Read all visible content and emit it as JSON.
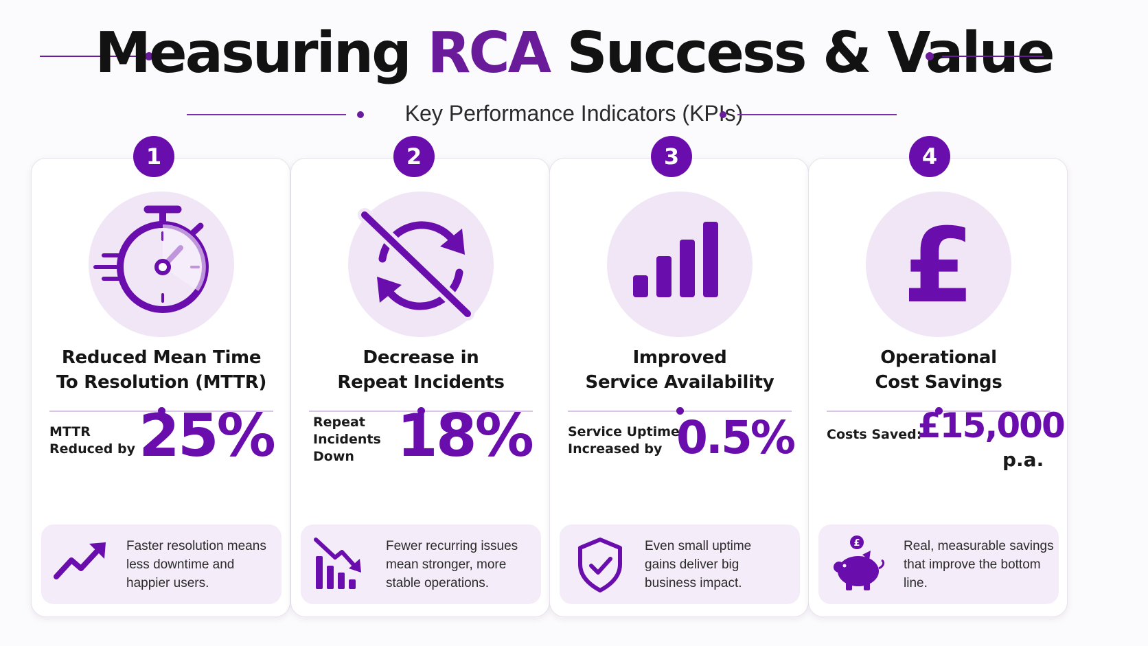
{
  "header": {
    "title_before": "Measuring ",
    "title_accent": "RCA",
    "title_after": " Success & Value",
    "subtitle": "Key Performance Indicators (KPIs)"
  },
  "colors": {
    "accent": "#6a0dad",
    "icon_bg": "#f1e6f6",
    "note_bg": "#f4ecf8"
  },
  "cards": [
    {
      "number": "1",
      "icon": "stopwatch-icon",
      "title_lines": [
        "Reduced Mean Time",
        "To Resolution (MTTR)"
      ],
      "metric_label_lines": [
        "MTTR",
        "Reduced by"
      ],
      "metric_value": "25%",
      "metric_unit": "",
      "note_icon": "trend-up-arrow-icon",
      "note_lines": [
        "Faster resolution means",
        "less downtime and",
        "happier users."
      ]
    },
    {
      "number": "2",
      "icon": "no-repeat-cycle-icon",
      "title_lines": [
        "Decrease in",
        "Repeat Incidents"
      ],
      "metric_label_lines": [
        "Repeat",
        "Incidents",
        "Down"
      ],
      "metric_value": "18%",
      "metric_unit": "",
      "note_icon": "bar-chart-declining-icon",
      "note_lines": [
        "Fewer recurring issues",
        "mean stronger, more",
        "stable operations."
      ]
    },
    {
      "number": "3",
      "icon": "signal-bars-icon",
      "title_lines": [
        "Improved",
        "Service Availability"
      ],
      "metric_label_lines": [
        "Service Uptime",
        "Increased by"
      ],
      "metric_value": "0.5%",
      "metric_unit": "",
      "note_icon": "shield-check-icon",
      "note_lines": [
        "Even small uptime",
        "gains deliver big",
        "business impact."
      ]
    },
    {
      "number": "4",
      "icon": "pound-sign-icon",
      "title_lines": [
        "Operational",
        "Cost Savings"
      ],
      "metric_label_lines": [
        "Costs Saved:"
      ],
      "metric_value": "£15,000",
      "metric_unit": "p.a.",
      "note_icon": "piggy-bank-icon",
      "note_lines": [
        "Real, measurable savings",
        "that improve the bottom",
        "line."
      ]
    }
  ]
}
